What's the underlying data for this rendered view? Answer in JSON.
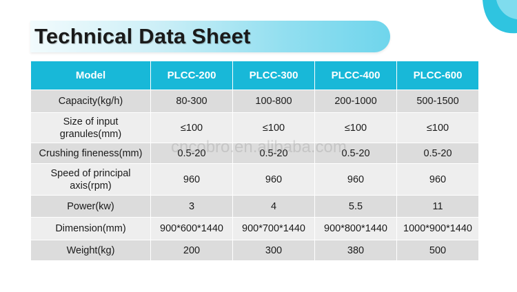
{
  "title": "Technical Data Sheet",
  "watermark": "cncobro.en.alibaba.com",
  "colors": {
    "header_bg": "#18b8d8",
    "row_dark": "#dcdcdc",
    "row_light": "#eeeeee",
    "banner_accent": "#6fd5ec"
  },
  "table": {
    "headers": [
      "Model",
      "PLCC-200",
      "PLCC-300",
      "PLCC-400",
      "PLCC-600"
    ],
    "rows": [
      {
        "label": "Capacity(kg/h)",
        "values": [
          "80-300",
          "100-800",
          "200-1000",
          "500-1500"
        ]
      },
      {
        "label": "Size of input granules(mm)",
        "values": [
          "≤100",
          "≤100",
          "≤100",
          "≤100"
        ]
      },
      {
        "label": "Crushing fineness(mm)",
        "values": [
          "0.5-20",
          "0.5-20",
          "0.5-20",
          "0.5-20"
        ]
      },
      {
        "label": "Speed of principal axis(rpm)",
        "values": [
          "960",
          "960",
          "960",
          "960"
        ]
      },
      {
        "label": "Power(kw)",
        "values": [
          "3",
          "4",
          "5.5",
          "11"
        ]
      },
      {
        "label": "Dimension(mm)",
        "values": [
          "900*600*1440",
          "900*700*1440",
          "900*800*1440",
          "1000*900*1440"
        ]
      },
      {
        "label": "Weight(kg)",
        "values": [
          "200",
          "300",
          "380",
          "500"
        ]
      }
    ]
  }
}
